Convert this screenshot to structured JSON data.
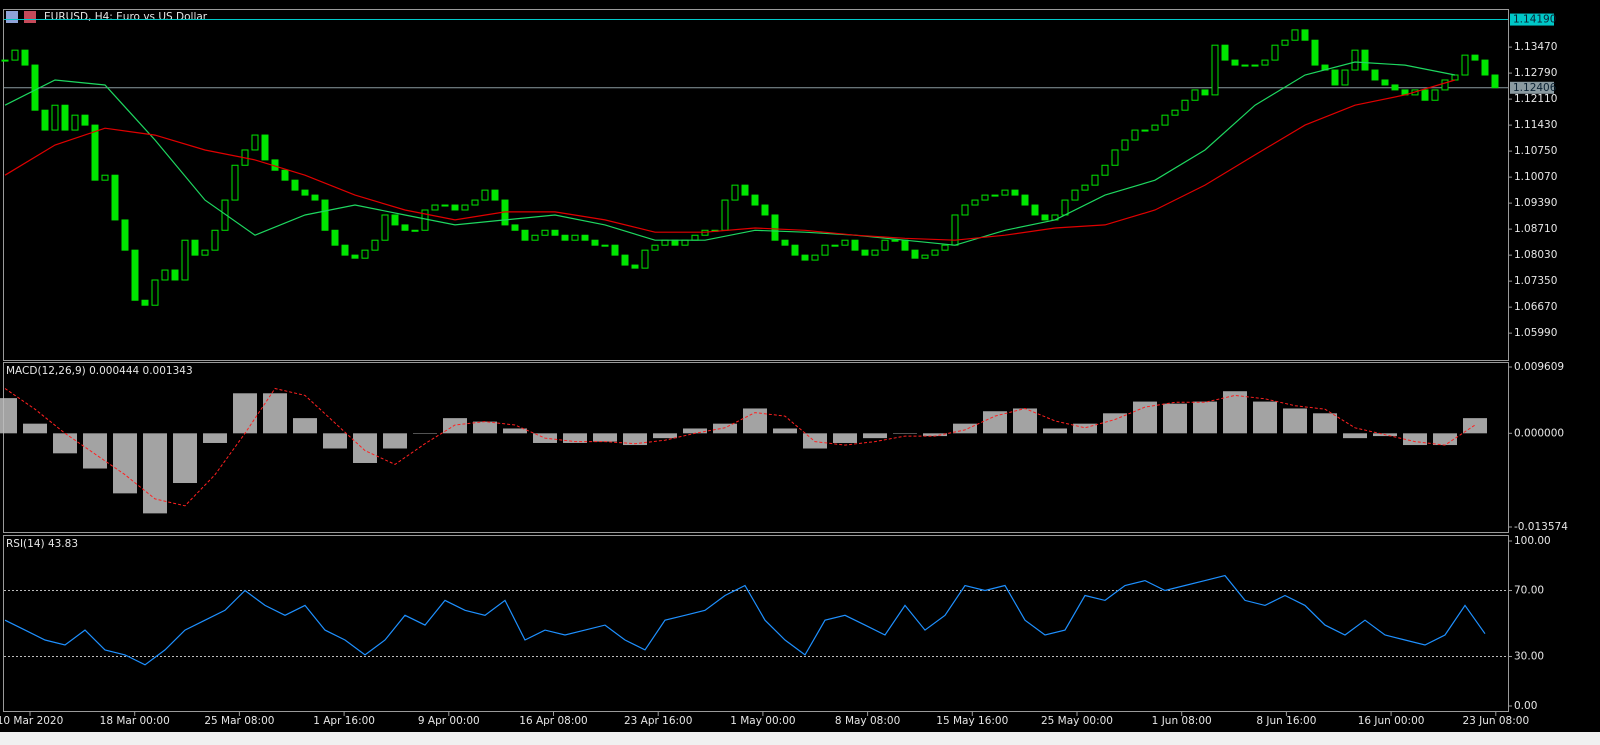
{
  "chart_data": [
    {
      "type": "candlestick",
      "title": "EURUSD, H4:  Euro vs US Dollar",
      "color": "#00e600",
      "ylim": [
        1.0534,
        1.1444
      ],
      "yticks": [
        {
          "value": 1.0599,
          "label": "1.05990"
        },
        {
          "value": 1.0667,
          "label": "1.06670"
        },
        {
          "value": 1.0735,
          "label": "1.07350"
        },
        {
          "value": 1.0803,
          "label": "1.08030"
        },
        {
          "value": 1.0871,
          "label": "1.08710"
        },
        {
          "value": 1.0939,
          "label": "1.09390"
        },
        {
          "value": 1.1007,
          "label": "1.10070"
        },
        {
          "value": 1.1075,
          "label": "1.10750"
        },
        {
          "value": 1.1143,
          "label": "1.11430"
        },
        {
          "value": 1.1211,
          "label": "1.12110"
        },
        {
          "value": 1.1279,
          "label": "1.12790"
        },
        {
          "value": 1.1347,
          "label": "1.13470"
        }
      ],
      "price_lines": [
        {
          "value": 1.1419,
          "label": "1.14190",
          "color": "#00c8c8"
        },
        {
          "value": 1.12406,
          "label": "1.12406",
          "color": "#8a9aa0"
        }
      ],
      "close": [
        1.1313,
        1.1339,
        1.13,
        1.1182,
        1.113,
        1.1195,
        1.113,
        1.1169,
        1.1143,
        1.0999,
        1.1012,
        1.0895,
        1.0816,
        1.0685,
        1.0672,
        1.0738,
        1.0764,
        1.0738,
        1.0842,
        1.0803,
        1.0816,
        1.0868,
        1.0947,
        1.1038,
        1.1078,
        1.1117,
        1.1052,
        1.1025,
        1.0999,
        1.0973,
        1.096,
        1.0947,
        1.0868,
        1.0829,
        1.0803,
        1.0795,
        1.0816,
        1.0842,
        1.0908,
        1.0882,
        1.0868,
        1.0868,
        1.0921,
        1.0934,
        1.0934,
        1.0921,
        1.0934,
        1.0947,
        1.0973,
        1.0947,
        1.0882,
        1.0868,
        1.0842,
        1.0855,
        1.0868,
        1.0855,
        1.0842,
        1.0855,
        1.0842,
        1.0829,
        1.0829,
        1.0803,
        1.0777,
        1.0769,
        1.0816,
        1.0829,
        1.0842,
        1.0829,
        1.0842,
        1.0855,
        1.0868,
        1.0868,
        1.0947,
        1.0986,
        1.096,
        1.0934,
        1.0908,
        1.0842,
        1.0829,
        1.0803,
        1.079,
        1.0803,
        1.0829,
        1.0829,
        1.0842,
        1.0816,
        1.0803,
        1.0816,
        1.0842,
        1.0842,
        1.0816,
        1.0795,
        1.0803,
        1.0816,
        1.0829,
        1.0908,
        1.0934,
        1.0947,
        1.096,
        1.096,
        1.0973,
        1.096,
        1.0934,
        1.0908,
        1.0895,
        1.0908,
        1.0947,
        1.0973,
        1.0986,
        1.1012,
        1.1038,
        1.1078,
        1.1104,
        1.113,
        1.113,
        1.1143,
        1.1169,
        1.1182,
        1.1208,
        1.1235,
        1.1222,
        1.1352,
        1.1313,
        1.13,
        1.13,
        1.13,
        1.1313,
        1.1352,
        1.1365,
        1.1392,
        1.1365,
        1.13,
        1.1287,
        1.1248,
        1.1287,
        1.1339,
        1.1287,
        1.1261,
        1.1248,
        1.1235,
        1.1222,
        1.1235,
        1.1208,
        1.1235,
        1.1261,
        1.1274,
        1.1326,
        1.1313,
        1.1274,
        1.1241
      ],
      "series": [
        {
          "color": "#1ed760",
          "values": [
            1.1195,
            1.1261,
            1.1248,
            1.1104,
            1.0947,
            1.0855,
            1.0908,
            1.0934,
            1.0908,
            1.0882,
            1.0895,
            1.0908,
            1.0882,
            1.0842,
            1.0842,
            1.0868,
            1.0863,
            1.0855,
            1.0842,
            1.0829,
            1.0868,
            1.0895,
            1.096,
            1.0999,
            1.1078,
            1.1195,
            1.1274,
            1.1308,
            1.13,
            1.1274
          ]
        },
        {
          "color": "#e00000",
          "values": [
            1.1012,
            1.1091,
            1.1135,
            1.1117,
            1.1078,
            1.1052,
            1.1012,
            1.096,
            1.0921,
            1.0895,
            1.0916,
            1.0916,
            1.0895,
            1.0863,
            1.0863,
            1.0874,
            1.0868,
            1.0855,
            1.0847,
            1.0842,
            1.0855,
            1.0874,
            1.0882,
            1.0921,
            1.0986,
            1.1065,
            1.1143,
            1.1195,
            1.1222,
            1.1261
          ]
        }
      ]
    },
    {
      "type": "macd",
      "title": "MACD(12,26,9) 0.000444 0.001343",
      "ylim": [
        -0.013574,
        0.009609
      ],
      "yticks": [
        -0.013574,
        {
          "value": 0,
          "label": "0.000000"
        },
        0.009609
      ],
      "series": [
        {
          "color": "#c0c0c0",
          "values": [
            0.0051,
            0.0014,
            -0.0029,
            -0.0051,
            -0.0087,
            -0.0116,
            -0.0072,
            -0.0014,
            0.0058,
            0.0058,
            0.0022,
            -0.0022,
            -0.0043,
            -0.0022,
            0.0,
            0.0022,
            0.0017,
            0.0007,
            -0.0014,
            -0.0014,
            -0.0012,
            -0.0017,
            -0.0007,
            0.0007,
            0.0014,
            0.0036,
            0.0007,
            -0.0022,
            -0.0014,
            -0.0007,
            0.0,
            -0.0004,
            0.0014,
            0.0032,
            0.0036,
            0.0007,
            0.0014,
            0.0029,
            0.0046,
            0.0043,
            0.0046,
            0.0061,
            0.0046,
            0.0036,
            0.0029,
            -0.0007,
            -0.0004,
            -0.0017,
            -0.0017,
            0.0022
          ]
        },
        {
          "color": "#ff2020",
          "values": [
            0.0065,
            0.0035,
            0.0,
            -0.003,
            -0.006,
            -0.0095,
            -0.0105,
            -0.006,
            0.0,
            0.0065,
            0.0055,
            0.0015,
            -0.0025,
            -0.0045,
            -0.0015,
            0.0012,
            0.0017,
            0.0012,
            -0.0007,
            -0.0012,
            -0.0012,
            -0.0015,
            -0.001,
            0.0,
            0.0008,
            0.003,
            0.0025,
            -0.0012,
            -0.0017,
            -0.0012,
            -0.0004,
            -0.0004,
            0.0005,
            0.0025,
            0.0036,
            0.0018,
            0.0008,
            0.002,
            0.0038,
            0.0045,
            0.0045,
            0.0055,
            0.005,
            0.004,
            0.0035,
            0.0008,
            -0.0002,
            -0.0012,
            -0.0017,
            0.0012
          ]
        }
      ]
    },
    {
      "type": "line",
      "title": "RSI(14) 43.83",
      "color": "#1e90ff",
      "ylim": [
        0,
        100
      ],
      "yticks": [
        {
          "value": 0,
          "label": "0.00"
        },
        {
          "value": 30,
          "label": "30.00"
        },
        {
          "value": 70,
          "label": "70.00"
        },
        {
          "value": 100,
          "label": "100.00"
        }
      ],
      "levels": [
        30,
        70
      ],
      "values": [
        52,
        46,
        40,
        37,
        46,
        34,
        31,
        25,
        34,
        46,
        52,
        58,
        70,
        61,
        55,
        61,
        46,
        40,
        31,
        40,
        55,
        49,
        64,
        58,
        55,
        64,
        40,
        46,
        43,
        46,
        49,
        40,
        34,
        52,
        55,
        58,
        67,
        73,
        52,
        40,
        31,
        52,
        55,
        49,
        43,
        61,
        46,
        55,
        73,
        70,
        73,
        52,
        43,
        46,
        67,
        64,
        73,
        76,
        70,
        73,
        76,
        79,
        64,
        61,
        67,
        61,
        49,
        43,
        52,
        43,
        40,
        37,
        43,
        61,
        43.83
      ],
      "x_labels": [
        "10 Mar 2020",
        "18 Mar 00:00",
        "25 Mar 08:00",
        "1 Apr 16:00",
        "9 Apr 00:00",
        "16 Apr 08:00",
        "23 Apr 16:00",
        "1 May 00:00",
        "8 May 08:00",
        "15 May 16:00",
        "25 May 00:00",
        "1 Jun 08:00",
        "8 Jun 16:00",
        "16 Jun 00:00",
        "23 Jun 08:00"
      ]
    }
  ]
}
